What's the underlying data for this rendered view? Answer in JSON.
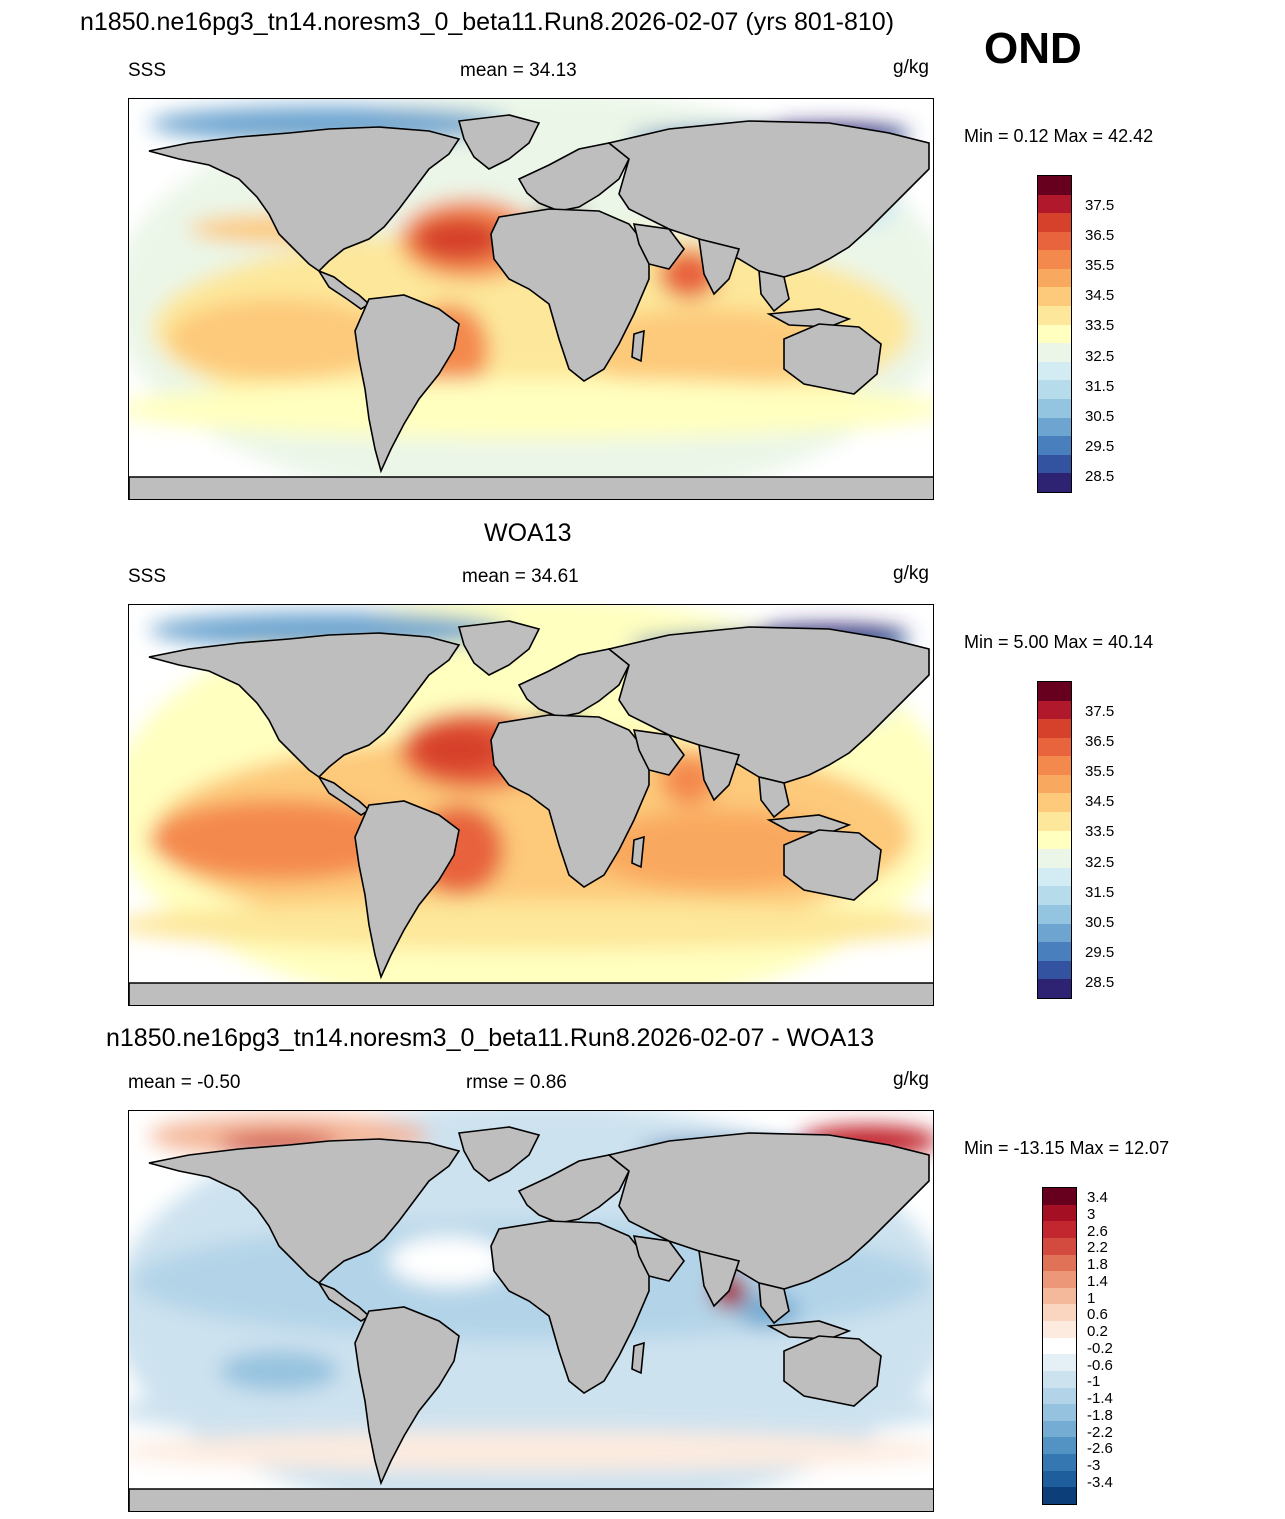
{
  "title": "n1850.ne16pg3_tn14.noresm3_0_beta11.Run8.2026-02-07 (yrs 801-810)",
  "season": "OND",
  "panels": [
    {
      "subtitle": "",
      "left_label": "SSS",
      "center_label": "mean =  34.13",
      "units": "g/kg",
      "minmax": "Min =   0.12 Max =  42.42",
      "scheme": "sss"
    },
    {
      "subtitle": "WOA13",
      "left_label": "SSS",
      "center_label": "mean =  34.61",
      "units": "g/kg",
      "minmax": "Min =   5.00 Max =  40.14",
      "scheme": "sss"
    },
    {
      "subtitle": "n1850.ne16pg3_tn14.noresm3_0_beta11.Run8.2026-02-07 - WOA13",
      "left_label": "mean =  -0.50",
      "center_label": "rmse =   0.86",
      "units": "g/kg",
      "minmax": "Min = -13.15 Max =  12.07",
      "scheme": "diff"
    }
  ],
  "colorbars": {
    "sss": {
      "ticks": [
        "37.5",
        "36.5",
        "35.5",
        "34.5",
        "33.5",
        "32.5",
        "31.5",
        "30.5",
        "29.5",
        "28.5"
      ],
      "colors": [
        "#67001f",
        "#b2182b",
        "#d6412b",
        "#e8643c",
        "#f4894d",
        "#f9a95f",
        "#fdc97a",
        "#fde79a",
        "#ffffbf",
        "#ebf6e8",
        "#d3ebf2",
        "#b6dcec",
        "#94c5e0",
        "#6ea5d0",
        "#4a7fbd",
        "#3353a0",
        "#2d2372"
      ]
    },
    "diff": {
      "ticks": [
        "3.4",
        "3",
        "2.6",
        "2.2",
        "1.8",
        "1.4",
        "1",
        "0.6",
        "0.2",
        "-0.2",
        "-0.6",
        "-1",
        "-1.4",
        "-1.8",
        "-2.2",
        "-2.6",
        "-3",
        "-3.4"
      ],
      "colors": [
        "#67001f",
        "#a50f24",
        "#c2262e",
        "#d24b3e",
        "#e07257",
        "#eb9778",
        "#f4b89b",
        "#fad5c0",
        "#fdebdf",
        "#ffffff",
        "#e4eff6",
        "#cde2ef",
        "#b3d4e8",
        "#95c2df",
        "#74acd3",
        "#5293c4",
        "#3477b1",
        "#1f5e9c",
        "#0c3f7a"
      ]
    }
  },
  "map_colors": {
    "land": "#bebebe",
    "coast": "#000000"
  }
}
